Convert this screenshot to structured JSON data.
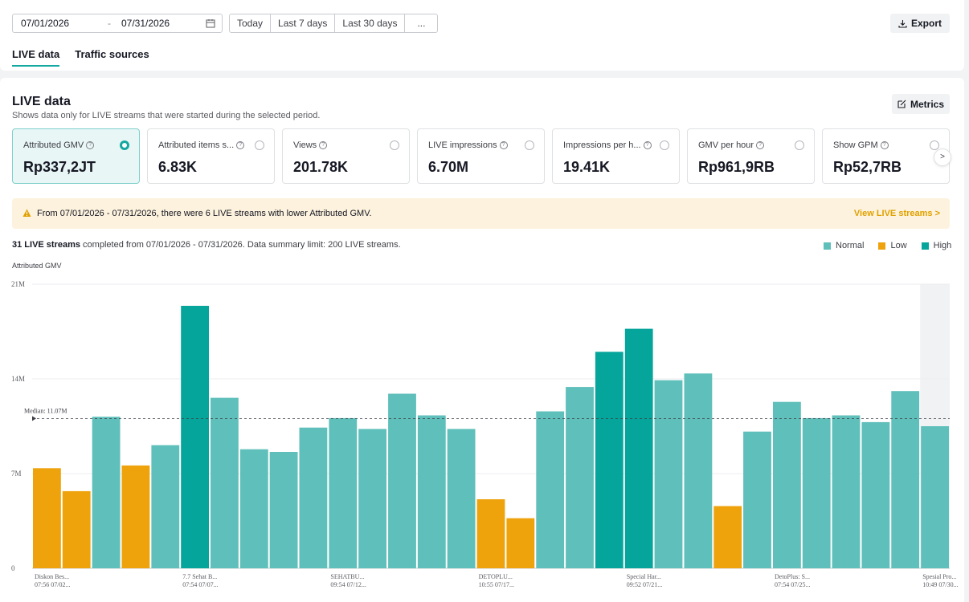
{
  "toolbar": {
    "date_start": "07/01/2026",
    "date_sep": "-",
    "date_end": "07/31/2026",
    "quick_ranges": [
      "Today",
      "Last 7 days",
      "Last 30 days",
      "..."
    ],
    "export_label": "Export"
  },
  "tabs": [
    "LIVE data",
    "Traffic sources"
  ],
  "section": {
    "title": "LIVE data",
    "subtitle": "Shows data only for LIVE streams that were started during the selected period.",
    "metrics_label": "Metrics"
  },
  "cards": [
    {
      "label": "Attributed GMV",
      "value": "Rp337,2JT",
      "selected": true
    },
    {
      "label": "Attributed items s...",
      "value": "6.83K",
      "selected": false
    },
    {
      "label": "Views",
      "value": "201.78K",
      "selected": false
    },
    {
      "label": "LIVE impressions",
      "value": "6.70M",
      "selected": false
    },
    {
      "label": "Impressions per h...",
      "value": "19.41K",
      "selected": false
    },
    {
      "label": "GMV per hour",
      "value": "Rp961,9RB",
      "selected": false
    },
    {
      "label": "Show GPM",
      "value": "Rp52,7RB",
      "selected": false
    }
  ],
  "carousel_next": ">",
  "alert": {
    "text": "From 07/01/2026 - 07/31/2026, there were 6 LIVE streams with lower Attributed GMV.",
    "link": "View LIVE streams >"
  },
  "summary": {
    "count": "31 LIVE streams",
    "rest": " completed from 07/01/2026 - 07/31/2026. Data summary limit: 200 LIVE streams."
  },
  "legend": [
    {
      "name": "Normal",
      "color": "#5fbfba"
    },
    {
      "name": "Low",
      "color": "#eea30d"
    },
    {
      "name": "High",
      "color": "#06a59c"
    }
  ],
  "colors": {
    "accent": "#14a8a0",
    "normal": "#5fbfba",
    "low": "#eea30d",
    "high": "#06a59c"
  },
  "chart_data": {
    "type": "bar",
    "ylabel": "Attributed GMV",
    "ylim": [
      0,
      21
    ],
    "yticks": [
      "0",
      "7M",
      "14M",
      "21M"
    ],
    "median": 11.07,
    "median_label": "Median: 11.07M",
    "values": [
      7.4,
      5.7,
      11.2,
      7.6,
      9.1,
      19.4,
      12.6,
      8.8,
      8.6,
      10.4,
      11.1,
      10.3,
      12.9,
      11.3,
      10.3,
      5.1,
      3.7,
      11.6,
      13.4,
      16.0,
      17.7,
      13.9,
      14.4,
      4.6,
      10.1,
      12.3,
      11.1,
      11.3,
      10.8,
      13.1,
      10.5
    ],
    "status": [
      "low",
      "low",
      "normal",
      "low",
      "normal",
      "high",
      "normal",
      "normal",
      "normal",
      "normal",
      "normal",
      "normal",
      "normal",
      "normal",
      "normal",
      "low",
      "low",
      "normal",
      "normal",
      "high",
      "high",
      "normal",
      "normal",
      "low",
      "normal",
      "normal",
      "normal",
      "normal",
      "normal",
      "normal",
      "normal"
    ],
    "x_labels": [
      {
        "index": 0,
        "name": "Diskon Bes...",
        "time": "07:56 07/02..."
      },
      {
        "index": 5,
        "name": "7.7 Sehat B...",
        "time": "07:54 07/07..."
      },
      {
        "index": 10,
        "name": "SEHATBU...",
        "time": "09:54 07/12..."
      },
      {
        "index": 15,
        "name": "DETOPLU...",
        "time": "10:55 07/17..."
      },
      {
        "index": 20,
        "name": "Special Har...",
        "time": "09:52 07/21..."
      },
      {
        "index": 25,
        "name": "DetoPlus: S...",
        "time": "07:54 07/25..."
      },
      {
        "index": 30,
        "name": "Spesial Pro...",
        "time": "10:49 07/30..."
      }
    ],
    "grid": true
  }
}
